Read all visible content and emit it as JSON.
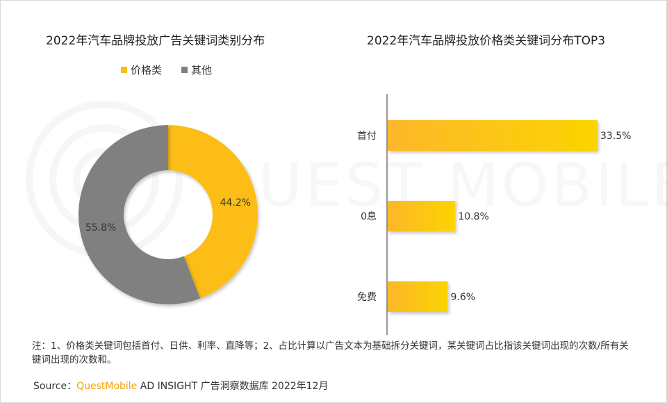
{
  "titles": {
    "left": "2022年汽车品牌投放广告关键词类别分布",
    "right": "2022年汽车品牌投放价格类关键词分布TOP3"
  },
  "watermark": "QUEST MOBILE",
  "colors": {
    "price": "#fbbd14",
    "other": "#808080",
    "bar_start": "#fcb72a",
    "bar_end": "#fcd400"
  },
  "chart_data": [
    {
      "type": "pie",
      "variant": "donut",
      "legend_position": "top",
      "labels": [
        "价格类",
        "其他"
      ],
      "values": [
        44.2,
        55.8
      ],
      "value_labels": [
        "44.2%",
        "55.8%"
      ],
      "unit": "%"
    },
    {
      "type": "bar",
      "orientation": "horizontal",
      "categories": [
        "首付",
        "0息",
        "免费"
      ],
      "values": [
        33.5,
        10.8,
        9.6
      ],
      "value_labels": [
        "33.5%",
        "10.8%",
        "9.6%"
      ],
      "unit": "%",
      "xlim": [
        0,
        33.5
      ],
      "grid": false
    }
  ],
  "note": "注：1、价格类关键词包括首付、日供、利率、直降等；2、占比计算以广告文本为基础拆分关键词，某关键词占比指该关键词出现的次数/所有关键词出现的次数和。",
  "source": {
    "prefix": "Source：",
    "brand": "QuestMobile",
    "rest": " AD INSIGHT 广告洞察数据库 2022年12月"
  }
}
